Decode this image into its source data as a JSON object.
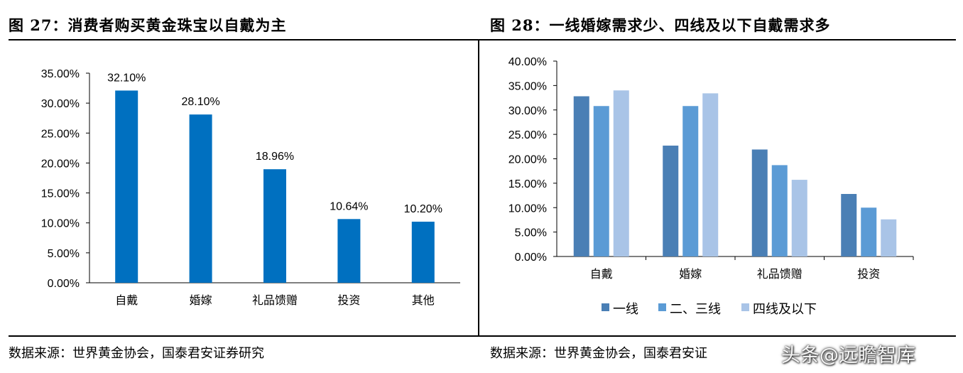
{
  "titles": {
    "left": "图 27：消费者购买黄金珠宝以自戴为主",
    "right": "图 28：一线婚嫁需求少、四线及以下自戴需求多"
  },
  "sources": {
    "left": "数据来源：世界黄金协会，国泰君安证券研究",
    "right": "数据来源：世界黄金协会，国泰君安证"
  },
  "watermark": "头条@远瞻智库",
  "colors": {
    "bar_left": "#0070c0",
    "series": [
      "#4a7fb5",
      "#5b9bd5",
      "#a9c4e7"
    ]
  },
  "chart_data": [
    {
      "type": "bar",
      "categories": [
        "自戴",
        "婚嫁",
        "礼品馈赠",
        "投资",
        "其他"
      ],
      "values": [
        32.1,
        28.1,
        18.96,
        10.64,
        10.2
      ],
      "data_labels": [
        "32.10%",
        "28.10%",
        "18.96%",
        "10.64%",
        "10.20%"
      ],
      "yticks": [
        "0.00%",
        "5.00%",
        "10.00%",
        "15.00%",
        "20.00%",
        "25.00%",
        "30.00%",
        "35.00%"
      ],
      "ylim": [
        0,
        35
      ],
      "grid": false,
      "legend": "none"
    },
    {
      "type": "bar",
      "categories": [
        "自戴",
        "婚嫁",
        "礼品馈赠",
        "投资"
      ],
      "series": [
        {
          "name": "一线",
          "values": [
            32.8,
            22.7,
            21.9,
            12.8
          ]
        },
        {
          "name": "二、三线",
          "values": [
            30.8,
            30.8,
            18.7,
            10.0
          ]
        },
        {
          "name": "四线及以下",
          "values": [
            34.0,
            33.4,
            15.7,
            7.6
          ]
        }
      ],
      "yticks": [
        "0.00%",
        "5.00%",
        "10.00%",
        "15.00%",
        "20.00%",
        "25.00%",
        "30.00%",
        "35.00%",
        "40.00%"
      ],
      "ylim": [
        0,
        40
      ],
      "grid": false,
      "legend": "bottom"
    }
  ]
}
